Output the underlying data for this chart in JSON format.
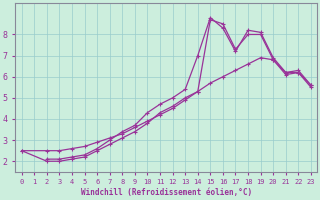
{
  "bg_color": "#cceedd",
  "grid_color": "#99cccc",
  "line_color": "#993399",
  "xlabel": "Windchill (Refroidissement éolien,°C)",
  "xlim": [
    -0.5,
    23.5
  ],
  "ylim": [
    1.5,
    9.5
  ],
  "xticks": [
    0,
    1,
    2,
    3,
    4,
    5,
    6,
    7,
    8,
    9,
    10,
    11,
    12,
    13,
    14,
    15,
    16,
    17,
    18,
    19,
    20,
    21,
    22,
    23
  ],
  "yticks": [
    2,
    3,
    4,
    5,
    6,
    7,
    8
  ],
  "line1_x": [
    0,
    2,
    3,
    4,
    5,
    6,
    7,
    8,
    9,
    10,
    11,
    12,
    13,
    14,
    15,
    16,
    17,
    18,
    19,
    20,
    21,
    22,
    23
  ],
  "line1_y": [
    2.5,
    2.5,
    2.5,
    2.6,
    2.7,
    2.9,
    3.1,
    3.3,
    3.6,
    3.9,
    4.2,
    4.5,
    4.9,
    5.3,
    5.7,
    6.0,
    6.3,
    6.6,
    6.9,
    6.8,
    6.2,
    6.2,
    5.5
  ],
  "line2_x": [
    2,
    3,
    4,
    5,
    6,
    7,
    8,
    9,
    10,
    11,
    12,
    13,
    14,
    15,
    16,
    17,
    18,
    19,
    20,
    21,
    22,
    23
  ],
  "line2_y": [
    2.1,
    2.1,
    2.2,
    2.3,
    2.6,
    3.0,
    3.4,
    3.7,
    4.3,
    4.7,
    5.0,
    5.4,
    7.0,
    8.8,
    8.3,
    7.2,
    8.2,
    8.1,
    6.9,
    6.2,
    6.3,
    5.6
  ],
  "line3_x": [
    0,
    2,
    3,
    4,
    5,
    6,
    7,
    8,
    9,
    10,
    11,
    12,
    13,
    14,
    15,
    16,
    17,
    18,
    19,
    20,
    21,
    22,
    23
  ],
  "line3_y": [
    2.5,
    2.0,
    2.0,
    2.1,
    2.2,
    2.5,
    2.8,
    3.1,
    3.4,
    3.8,
    4.3,
    4.6,
    5.0,
    5.3,
    8.7,
    8.5,
    7.3,
    8.0,
    8.0,
    6.8,
    6.1,
    6.2,
    5.6
  ]
}
